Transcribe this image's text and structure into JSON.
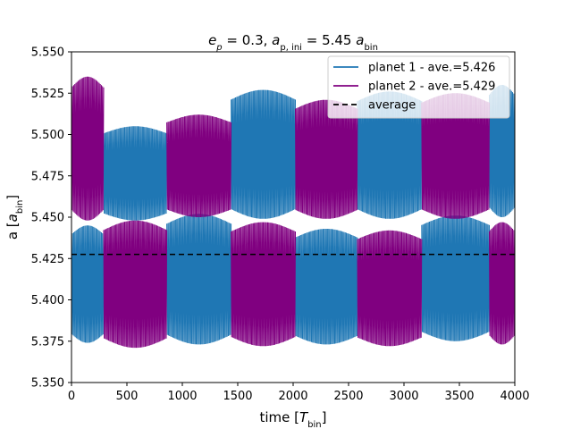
{
  "chart_data": {
    "type": "line",
    "title": "e_p = 0.3,  a_p,ini = 5.45 a_bin",
    "xlabel": "time [T_bin]",
    "ylabel": "a [a_bin]",
    "xlim": [
      0,
      4000
    ],
    "ylim": [
      5.35,
      5.55
    ],
    "xticks": [
      "0",
      "500",
      "1000",
      "1500",
      "2000",
      "2500",
      "3000",
      "3500",
      "4000"
    ],
    "yticks": [
      "5.350",
      "5.375",
      "5.400",
      "5.425",
      "5.450",
      "5.475",
      "5.500",
      "5.525",
      "5.550"
    ],
    "grid": false,
    "legend_position": "top-right",
    "series": [
      {
        "name": "planet 1 - ave.=5.426",
        "color": "#1f77b4",
        "style": "oscillating band (min/max envelope)",
        "segments": [
          {
            "t0": 0,
            "t1": 290,
            "low": 5.374,
            "high": 5.445
          },
          {
            "t0": 290,
            "t1": 860,
            "low": 5.448,
            "high": 5.505
          },
          {
            "t0": 860,
            "t1": 1440,
            "low": 5.373,
            "high": 5.452
          },
          {
            "t0": 1440,
            "t1": 2020,
            "low": 5.449,
            "high": 5.527
          },
          {
            "t0": 2020,
            "t1": 2580,
            "low": 5.373,
            "high": 5.443
          },
          {
            "t0": 2580,
            "t1": 3160,
            "low": 5.449,
            "high": 5.526
          },
          {
            "t0": 3160,
            "t1": 3770,
            "low": 5.375,
            "high": 5.451
          },
          {
            "t0": 3770,
            "t1": 4000,
            "low": 5.45,
            "high": 5.53
          }
        ]
      },
      {
        "name": "planet 2 - ave.=5.429",
        "color": "#800080",
        "style": "oscillating band (min/max envelope)",
        "segments": [
          {
            "t0": 0,
            "t1": 290,
            "low": 5.448,
            "high": 5.535
          },
          {
            "t0": 290,
            "t1": 860,
            "low": 5.371,
            "high": 5.448
          },
          {
            "t0": 860,
            "t1": 1440,
            "low": 5.45,
            "high": 5.512
          },
          {
            "t0": 1440,
            "t1": 2020,
            "low": 5.372,
            "high": 5.447
          },
          {
            "t0": 2020,
            "t1": 2580,
            "low": 5.449,
            "high": 5.521
          },
          {
            "t0": 2580,
            "t1": 3160,
            "low": 5.372,
            "high": 5.442
          },
          {
            "t0": 3160,
            "t1": 3770,
            "low": 5.449,
            "high": 5.525
          },
          {
            "t0": 3770,
            "t1": 4000,
            "low": 5.373,
            "high": 5.447
          }
        ]
      },
      {
        "name": "average",
        "color": "#000000",
        "style": "dashed",
        "x": [
          0,
          4000
        ],
        "y": [
          5.4275,
          5.4275
        ]
      }
    ]
  }
}
